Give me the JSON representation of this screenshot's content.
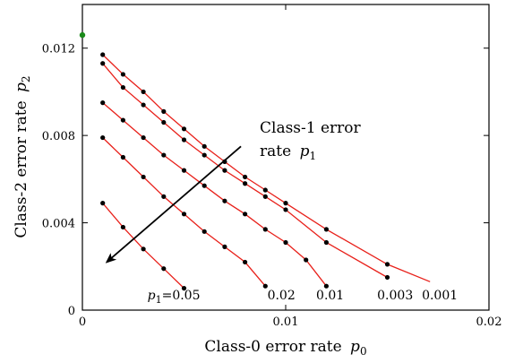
{
  "chart_data": {
    "type": "line",
    "xlabel": "Class-0 error rate",
    "xlabel_symbol": "p",
    "xlabel_sub": "0",
    "ylabel": "Class-2 error rate",
    "ylabel_symbol": "p",
    "ylabel_sub": "2",
    "xlim": [
      0,
      0.02
    ],
    "ylim": [
      0,
      0.014
    ],
    "xticks": [
      0,
      0.01,
      0.02
    ],
    "xtick_labels": [
      "0",
      "0.01",
      "0.02"
    ],
    "yticks": [
      0,
      0.004,
      0.008,
      0.012
    ],
    "ytick_labels": [
      "0",
      "0.004",
      "0.008",
      "0.012"
    ],
    "grid": false,
    "annotation": {
      "line1": "Class-1 error",
      "line2": "rate",
      "symbol": "p",
      "sub": "1",
      "arrow_from": [
        0.0078,
        0.0075
      ],
      "arrow_to": [
        0.0012,
        0.0022
      ]
    },
    "highlight_point": {
      "x": 0,
      "y": 0.0126,
      "color": "#1a8a1a"
    },
    "line_color": "#e8201a",
    "point_color": "#000000",
    "series": [
      {
        "p1": "0.05",
        "label_prefix": "p",
        "label_sub": "1",
        "label_suffix": "=0.05",
        "label_pos": [
          0.0032,
          0.0007
        ],
        "x": [
          0.001,
          0.002,
          0.003,
          0.004,
          0.005
        ],
        "y": [
          0.0049,
          0.0038,
          0.0028,
          0.0019,
          0.001
        ]
      },
      {
        "p1": "0.02",
        "label": "0.02",
        "label_pos": [
          0.0091,
          0.0007
        ],
        "x": [
          0.001,
          0.002,
          0.003,
          0.004,
          0.005,
          0.006,
          0.007,
          0.008,
          0.009
        ],
        "y": [
          0.0079,
          0.007,
          0.0061,
          0.0052,
          0.0044,
          0.0036,
          0.0029,
          0.0022,
          0.0011
        ]
      },
      {
        "p1": "0.01",
        "label": "0.01",
        "label_pos": [
          0.0115,
          0.0007
        ],
        "x": [
          0.001,
          0.002,
          0.003,
          0.004,
          0.005,
          0.006,
          0.007,
          0.008,
          0.009,
          0.01,
          0.011,
          0.012
        ],
        "y": [
          0.0095,
          0.0087,
          0.0079,
          0.0071,
          0.0064,
          0.0057,
          0.005,
          0.0044,
          0.0037,
          0.0031,
          0.0023,
          0.0011
        ]
      },
      {
        "p1": "0.003",
        "label": "0.003",
        "label_pos": [
          0.0145,
          0.0007
        ],
        "x": [
          0.001,
          0.002,
          0.003,
          0.004,
          0.005,
          0.006,
          0.007,
          0.008,
          0.009,
          0.01,
          0.012,
          0.015
        ],
        "y": [
          0.0113,
          0.0102,
          0.0094,
          0.0086,
          0.0078,
          0.0071,
          0.0064,
          0.0058,
          0.0052,
          0.0046,
          0.0031,
          0.0015
        ]
      },
      {
        "p1": "0.001",
        "label": "0.001",
        "label_pos": [
          0.0167,
          0.0007
        ],
        "x": [
          0.001,
          0.002,
          0.003,
          0.004,
          0.005,
          0.006,
          0.007,
          0.008,
          0.009,
          0.01,
          0.012,
          0.015,
          0.0171
        ],
        "y": [
          0.0117,
          0.0108,
          0.01,
          0.0091,
          0.0083,
          0.0075,
          0.0068,
          0.0061,
          0.0055,
          0.0049,
          0.0037,
          0.0021,
          0.0013
        ]
      }
    ]
  }
}
